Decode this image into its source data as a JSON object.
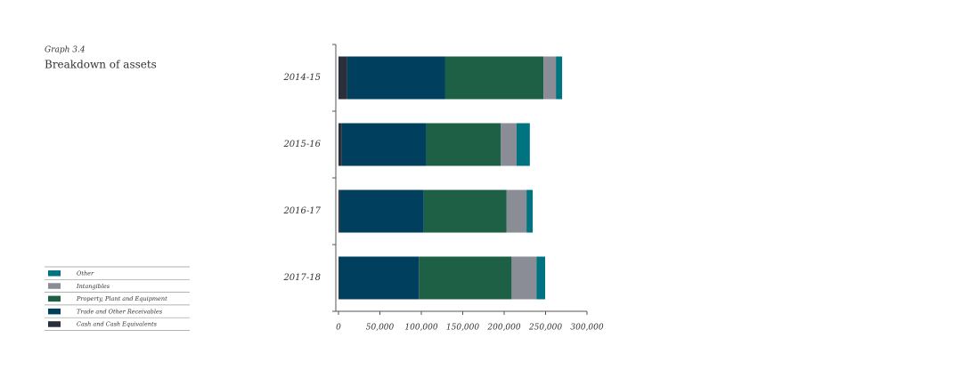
{
  "chart_data": {
    "type": "stacked-bar-horizontal",
    "subtitle": "Graph 3.4",
    "title": "Breakdown of assets",
    "categories": [
      "2014-15",
      "2015-16",
      "2016-17",
      "2017-18"
    ],
    "series": [
      {
        "name": "Cash and Cash Equivalents",
        "color": "#2a2f3a",
        "values": [
          10500,
          4000,
          2000,
          1000
        ]
      },
      {
        "name": "Trade and Other Receivables",
        "color": "#003f5e",
        "values": [
          118000,
          102000,
          101000,
          96000
        ]
      },
      {
        "name": "Property, Plant and Equipment",
        "color": "#1e6045",
        "values": [
          119000,
          90000,
          100000,
          112000
        ]
      },
      {
        "name": "Intangibles",
        "color": "#8a8d96",
        "values": [
          15000,
          19000,
          24000,
          30000
        ]
      },
      {
        "name": "Other",
        "color": "#007381",
        "values": [
          7500,
          16000,
          7500,
          10500
        ]
      }
    ],
    "xlim": [
      0,
      300000
    ],
    "xticks": [
      0,
      {
        "value": 50000,
        "label": "50,000"
      },
      {
        "value": 100000,
        "label": "100,000"
      },
      {
        "value": 150000,
        "label": "150,000"
      },
      {
        "value": 200000,
        "label": "200,000"
      },
      {
        "value": 250000,
        "label": "250,000"
      },
      {
        "value": 300000,
        "label": "300,000"
      }
    ]
  }
}
